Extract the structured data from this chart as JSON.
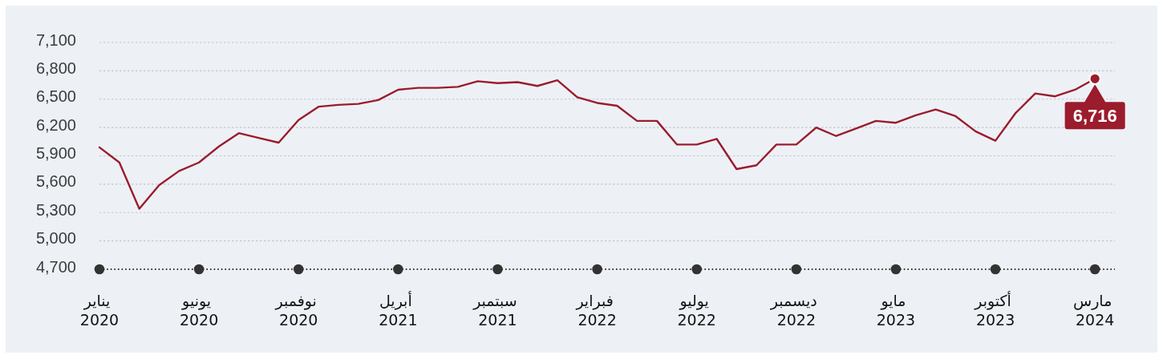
{
  "chart_data": {
    "type": "line",
    "x": [
      "2020-01",
      "2020-02",
      "2020-03",
      "2020-04",
      "2020-05",
      "2020-06",
      "2020-07",
      "2020-08",
      "2020-09",
      "2020-10",
      "2020-11",
      "2020-12",
      "2021-01",
      "2021-02",
      "2021-03",
      "2021-04",
      "2021-05",
      "2021-06",
      "2021-07",
      "2021-08",
      "2021-09",
      "2021-10",
      "2021-11",
      "2021-12",
      "2022-01",
      "2022-02",
      "2022-03",
      "2022-04",
      "2022-05",
      "2022-06",
      "2022-07",
      "2022-08",
      "2022-09",
      "2022-10",
      "2022-11",
      "2022-12",
      "2023-01",
      "2023-02",
      "2023-03",
      "2023-04",
      "2023-05",
      "2023-06",
      "2023-07",
      "2023-08",
      "2023-09",
      "2023-10",
      "2023-11",
      "2023-12",
      "2024-01",
      "2024-02",
      "2024-03"
    ],
    "series": [
      {
        "color": "#9b1c2c",
        "values": [
          5990,
          5830,
          5340,
          5590,
          5740,
          5830,
          6000,
          6140,
          6090,
          6040,
          6280,
          6420,
          6440,
          6450,
          6490,
          6600,
          6620,
          6620,
          6630,
          6690,
          6670,
          6680,
          6640,
          6700,
          6520,
          6460,
          6430,
          6270,
          6270,
          6020,
          6020,
          6080,
          5760,
          5800,
          6020,
          6020,
          6200,
          6110,
          6190,
          6270,
          6250,
          6330,
          6390,
          6320,
          6160,
          6060,
          6350,
          6560,
          6530,
          6600,
          6716
        ],
        "value_labels": [
          null,
          null,
          null,
          null,
          null,
          null,
          null,
          null,
          null,
          null,
          null,
          null,
          null,
          null,
          null,
          null,
          null,
          null,
          null,
          null,
          null,
          null,
          null,
          null,
          null,
          null,
          null,
          null,
          null,
          null,
          null,
          null,
          null,
          null,
          null,
          null,
          null,
          null,
          null,
          null,
          null,
          null,
          null,
          null,
          null,
          null,
          null,
          null,
          null,
          null,
          "6,716"
        ]
      }
    ],
    "xlim": [
      "2020-01",
      "2024-04"
    ],
    "xticks": [
      {
        "value": "2020-01",
        "label": "يناير 2020"
      },
      {
        "value": "2020-06",
        "label": "يونيو 2020"
      },
      {
        "value": "2020-11",
        "label": "نوفمبر 2020"
      },
      {
        "value": "2021-04",
        "label": "أبريل 2021"
      },
      {
        "value": "2021-09",
        "label": "سبتمبر 2021"
      },
      {
        "value": "2022-02",
        "label": "فبراير 2022"
      },
      {
        "value": "2022-07",
        "label": "يوليو 2022"
      },
      {
        "value": "2022-12",
        "label": "ديسمبر 2022"
      },
      {
        "value": "2023-05",
        "label": "مايو 2023"
      },
      {
        "value": "2023-10",
        "label": "أكتوبر 2023"
      },
      {
        "value": "2024-03",
        "label": "مارس 2024"
      }
    ],
    "ylim": [
      4700,
      7100
    ],
    "yticks": [
      {
        "value": 4700,
        "label": "4,700"
      },
      {
        "value": 5000,
        "label": "5,000"
      },
      {
        "value": 5300,
        "label": "5,300"
      },
      {
        "value": 5600,
        "label": "5,600"
      },
      {
        "value": 5900,
        "label": "5,900"
      },
      {
        "value": 6200,
        "label": "6,200"
      },
      {
        "value": 6500,
        "label": "6,500"
      },
      {
        "value": 6800,
        "label": "6,800"
      },
      {
        "value": 7100,
        "label": "7,100"
      }
    ],
    "grid": "y"
  }
}
